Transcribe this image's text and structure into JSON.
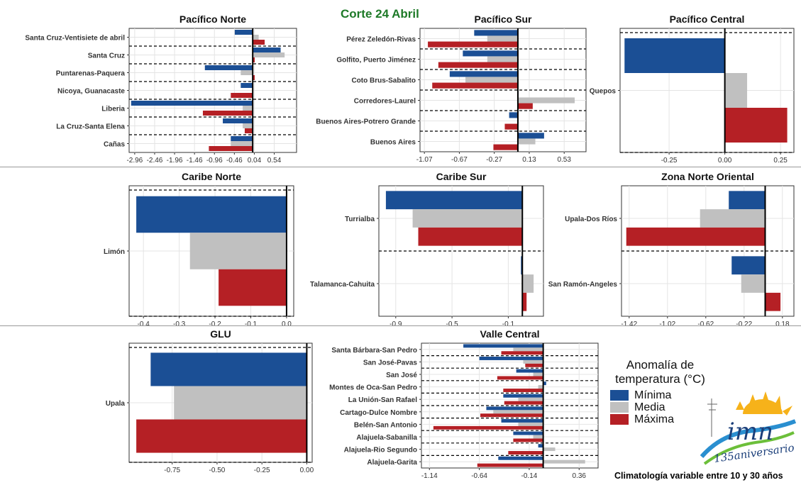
{
  "heading": "Corte 24 Abril",
  "legend": {
    "title_line1": "Anomalía de",
    "title_line2": "temperatura (°C)",
    "items": [
      {
        "label": "Mínima",
        "color": "#1b4f95"
      },
      {
        "label": "Media",
        "color": "#c0c0c0"
      },
      {
        "label": "Máxima",
        "color": "#b52025"
      }
    ]
  },
  "footnote": "Climatología variable entre 10 y 30 años",
  "logo": {
    "text": "imn",
    "subtext": "135aniversario"
  },
  "chart_data": [
    {
      "type": "bar",
      "title": "Pacífico Norte",
      "categories": [
        "Santa Cruz-Ventisiete de abril",
        "Santa Cruz",
        "Puntarenas-Paquera",
        "Nicoya, Guanacaste",
        "Liberia",
        "La Cruz-Santa Elena",
        "Cañas"
      ],
      "series": [
        {
          "name": "Mínima",
          "values": [
            -0.45,
            0.7,
            -1.2,
            -0.3,
            -3.05,
            -0.75,
            -0.55
          ]
        },
        {
          "name": "Media",
          "values": [
            0.15,
            0.8,
            -0.3,
            0.0,
            -0.25,
            -0.25,
            -0.55
          ]
        },
        {
          "name": "Máxima",
          "values": [
            0.3,
            0.05,
            0.05,
            -0.55,
            -1.25,
            -0.2,
            -1.1
          ]
        }
      ],
      "xticks": [
        "-2.96",
        "-2.46",
        "-1.96",
        "-1.46",
        "-0.96",
        "-0.46",
        "0.04",
        "0.54"
      ],
      "xlim": [
        -3.1,
        1.1
      ],
      "orientation": "horizontal"
    },
    {
      "type": "bar",
      "title": "Pacífico Sur",
      "categories": [
        "Pérez Zeledón-Rivas",
        "Golfito, Puerto Jiménez",
        "Coto Brus-Sabalito",
        "Corredores-Laurel",
        "Buenos Aires-Potrero Grande",
        "Buenos Aires"
      ],
      "series": [
        {
          "name": "Mínima",
          "values": [
            -0.5,
            -0.63,
            -0.78,
            0.0,
            -0.1,
            0.3
          ]
        },
        {
          "name": "Media",
          "values": [
            -0.35,
            -0.35,
            -0.6,
            0.65,
            0.0,
            0.2
          ]
        },
        {
          "name": "Máxima",
          "values": [
            -1.03,
            -0.91,
            -0.98,
            0.17,
            -0.15,
            -0.28
          ]
        }
      ],
      "xticks": [
        "-1.07",
        "-0.67",
        "-0.27",
        "0.13",
        "0.53"
      ],
      "xlim": [
        -1.12,
        0.78
      ],
      "orientation": "horizontal"
    },
    {
      "type": "bar",
      "title": "Pacífico Central",
      "categories": [
        "Quepos"
      ],
      "series": [
        {
          "name": "Mínima",
          "values": [
            -0.45
          ]
        },
        {
          "name": "Media",
          "values": [
            0.1
          ]
        },
        {
          "name": "Máxima",
          "values": [
            0.28
          ]
        }
      ],
      "xticks": [
        "-0.25",
        "0.00",
        "0.25"
      ],
      "xlim": [
        -0.47,
        0.31
      ],
      "orientation": "horizontal"
    },
    {
      "type": "bar",
      "title": "Caribe Norte",
      "categories": [
        "Limón"
      ],
      "series": [
        {
          "name": "Mínima",
          "values": [
            -0.42
          ]
        },
        {
          "name": "Media",
          "values": [
            -0.27
          ]
        },
        {
          "name": "Máxima",
          "values": [
            -0.19
          ]
        }
      ],
      "xticks": [
        "-0.4",
        "-0.3",
        "-0.2",
        "-0.1",
        "0.0"
      ],
      "xlim": [
        -0.44,
        0.02
      ],
      "orientation": "horizontal"
    },
    {
      "type": "bar",
      "title": "Caribe Sur",
      "categories": [
        "Turrialba",
        "Talamanca-Cahuita"
      ],
      "series": [
        {
          "name": "Mínima",
          "values": [
            -0.97,
            -0.01
          ]
        },
        {
          "name": "Media",
          "values": [
            -0.78,
            0.08
          ]
        },
        {
          "name": "Máxima",
          "values": [
            -0.74,
            0.03
          ]
        }
      ],
      "xticks": [
        "-0.9",
        "-0.5",
        "-0.1"
      ],
      "xlim": [
        -1.02,
        0.15
      ],
      "orientation": "horizontal"
    },
    {
      "type": "bar",
      "title": "Zona Norte Oriental",
      "categories": [
        "Upala-Dos Ríos",
        "San Ramón-Angeles"
      ],
      "series": [
        {
          "name": "Mínima",
          "values": [
            -0.38,
            -0.35
          ]
        },
        {
          "name": "Media",
          "values": [
            -0.68,
            -0.25
          ]
        },
        {
          "name": "Máxima",
          "values": [
            -1.45,
            0.16
          ]
        }
      ],
      "xticks": [
        "-1.42",
        "-1.02",
        "-0.62",
        "-0.22",
        "0.18"
      ],
      "xlim": [
        -1.5,
        0.3
      ],
      "orientation": "horizontal"
    },
    {
      "type": "bar",
      "title": "GLU",
      "categories": [
        "Upala"
      ],
      "series": [
        {
          "name": "Mínima",
          "values": [
            -0.87
          ]
        },
        {
          "name": "Media",
          "values": [
            -0.74
          ]
        },
        {
          "name": "Máxima",
          "values": [
            -0.95
          ]
        }
      ],
      "xticks": [
        "-0.75",
        "-0.50",
        "-0.25",
        "0.00"
      ],
      "xlim": [
        -0.99,
        0.03
      ],
      "orientation": "horizontal"
    },
    {
      "type": "bar",
      "title": "Valle Central",
      "categories": [
        "Santa Bárbara-San Pedro",
        "San José-Pavas",
        "San José",
        "Montes de Oca-San Pedro",
        "La Unión-San Rafael",
        "Cartago-Dulce Nombre",
        "Belén-San Antonio",
        "Alajuela-Sabanilla",
        "Alajuela-Rio Segundo",
        "Alajuela-Garita"
      ],
      "series": [
        {
          "name": "Mínima",
          "values": [
            -0.8,
            -0.64,
            -0.27,
            0.03,
            -0.4,
            -0.57,
            -0.42,
            -0.3,
            -0.05,
            -0.45
          ]
        },
        {
          "name": "Media",
          "values": [
            -0.3,
            -0.2,
            -0.1,
            -0.05,
            -0.25,
            -0.5,
            -0.25,
            -0.1,
            0.12,
            0.42
          ]
        },
        {
          "name": "Máxima",
          "values": [
            -0.42,
            -0.18,
            -0.46,
            -0.4,
            -0.39,
            -0.63,
            -1.1,
            -0.3,
            -0.35,
            -0.66
          ]
        }
      ],
      "xticks": [
        "-1.14",
        "-0.64",
        "-0.14",
        "0.36"
      ],
      "xlim": [
        -1.22,
        0.55
      ],
      "orientation": "horizontal"
    }
  ]
}
